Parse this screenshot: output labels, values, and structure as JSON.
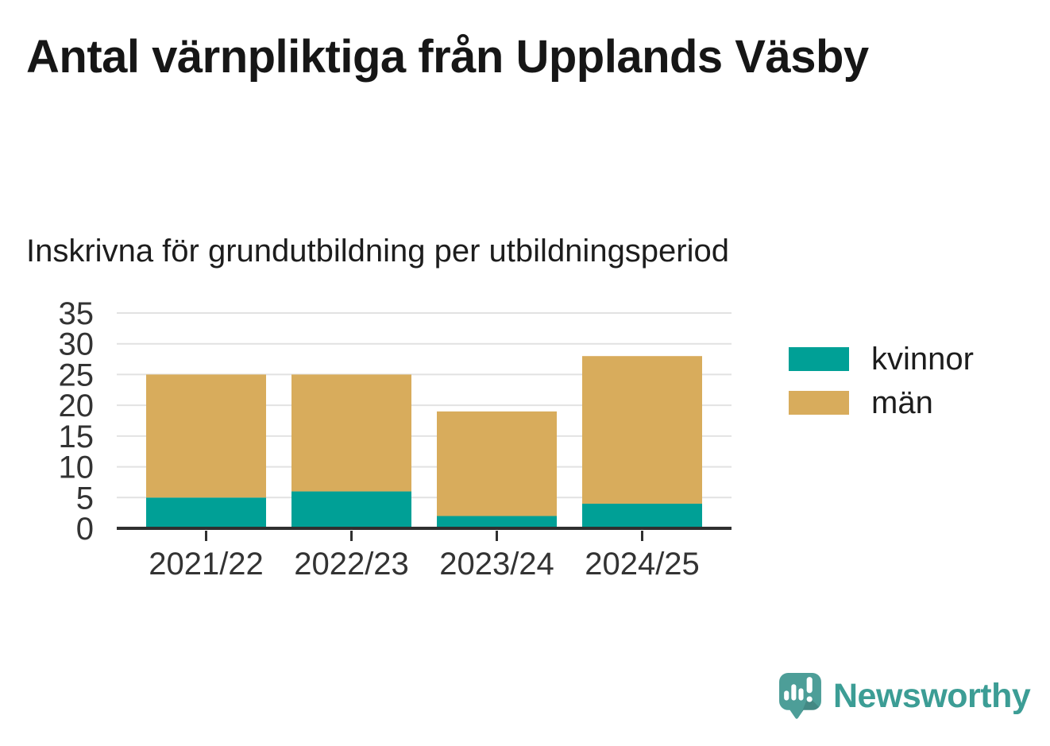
{
  "header": {
    "title": "Antal värnpliktiga från Upplands Väsby",
    "subtitle": "Inskrivna för grundutbildning per utbildningsperiod"
  },
  "chart_data": {
    "type": "bar",
    "stacked": true,
    "title": "Antal värnpliktiga från Upplands Väsby",
    "subtitle": "Inskrivna för grundutbildning per utbildningsperiod",
    "categories": [
      "2021/22",
      "2022/23",
      "2023/24",
      "2024/25"
    ],
    "series": [
      {
        "name": "kvinnor",
        "color": "#00A096",
        "values": [
          5,
          6,
          2,
          4
        ]
      },
      {
        "name": "män",
        "color": "#D8AC5C",
        "values": [
          20,
          19,
          17,
          24
        ]
      }
    ],
    "totals": [
      25,
      25,
      19,
      28
    ],
    "xlabel": "",
    "ylabel": "",
    "ylim": [
      0,
      35
    ],
    "yticks": [
      0,
      5,
      10,
      15,
      20,
      25,
      30,
      35
    ],
    "grid": "horizontal",
    "legend_position": "right"
  },
  "colors": {
    "axis": "#303030",
    "grid": "#e2e2e2",
    "axis_text": "#333333",
    "title_text": "#161616"
  },
  "branding": {
    "logo_text": "Newsworthy",
    "logo_text_color": "#3C9D95",
    "logo_icon_color": "#4D9E98"
  }
}
